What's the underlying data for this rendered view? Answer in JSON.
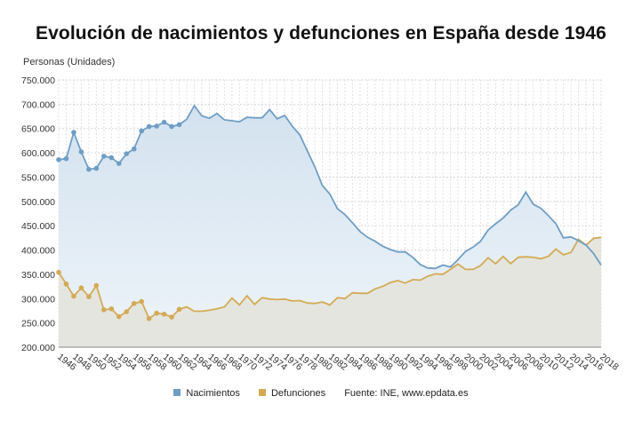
{
  "chart_data": {
    "type": "area",
    "title": "Evolución de nacimientos y defunciones en España desde 1946",
    "ylabel": "Personas (Unidades)",
    "xlabel": "",
    "ylim": [
      200000,
      750000
    ],
    "y_ticks": [
      {
        "value": 200000,
        "label": "200.000"
      },
      {
        "value": 250000,
        "label": "250.000"
      },
      {
        "value": 300000,
        "label": "300.000"
      },
      {
        "value": 350000,
        "label": "350.000"
      },
      {
        "value": 400000,
        "label": "400.000"
      },
      {
        "value": 450000,
        "label": "450.000"
      },
      {
        "value": 500000,
        "label": "500.000"
      },
      {
        "value": 550000,
        "label": "550.000"
      },
      {
        "value": 600000,
        "label": "600.000"
      },
      {
        "value": 650000,
        "label": "650.000"
      },
      {
        "value": 700000,
        "label": "700.000"
      },
      {
        "value": 750000,
        "label": "750.000"
      }
    ],
    "x_tick_labels": [
      "1946",
      "1948",
      "1950",
      "1952",
      "1954",
      "1956",
      "1958",
      "1960",
      "1962",
      "1964",
      "1966",
      "1968",
      "1970",
      "1972",
      "1974",
      "1976",
      "1978",
      "1980",
      "1982",
      "1984",
      "1986",
      "1988",
      "1990",
      "1992",
      "1994",
      "1996",
      "1998",
      "2000",
      "2002",
      "2004",
      "2006",
      "2008",
      "2010",
      "2012",
      "2014",
      "2016",
      "2018"
    ],
    "x": [
      1946,
      1947,
      1948,
      1949,
      1950,
      1951,
      1952,
      1953,
      1954,
      1955,
      1956,
      1957,
      1958,
      1959,
      1960,
      1961,
      1962,
      1963,
      1964,
      1965,
      1966,
      1967,
      1968,
      1969,
      1970,
      1971,
      1972,
      1973,
      1974,
      1975,
      1976,
      1977,
      1978,
      1979,
      1980,
      1981,
      1982,
      1983,
      1984,
      1985,
      1986,
      1987,
      1988,
      1989,
      1990,
      1991,
      1992,
      1993,
      1994,
      1995,
      1996,
      1997,
      1998,
      1999,
      2000,
      2001,
      2002,
      2003,
      2004,
      2005,
      2006,
      2007,
      2008,
      2009,
      2010,
      2011,
      2012,
      2013,
      2014,
      2015,
      2016,
      2017,
      2018
    ],
    "grid": true,
    "legend_position": "bottom",
    "series": [
      {
        "name": "Nacimientos",
        "color": "#6f9ec4",
        "values": [
          586000,
          588000,
          642000,
          602000,
          566000,
          568000,
          593000,
          590000,
          578000,
          598000,
          608000,
          645000,
          654000,
          655000,
          663000,
          654000,
          658000,
          669000,
          697000,
          676000,
          671000,
          681000,
          668000,
          666000,
          664000,
          673000,
          672000,
          672000,
          689000,
          670000,
          677000,
          655000,
          637000,
          604000,
          571000,
          533000,
          515000,
          485000,
          473000,
          456000,
          438000,
          426000,
          418000,
          408000,
          401000,
          396000,
          396000,
          385000,
          370000,
          363000,
          362000,
          369000,
          365000,
          380000,
          397000,
          406000,
          418000,
          441000,
          454000,
          466000,
          482000,
          493000,
          519000,
          494000,
          486000,
          471000,
          454000,
          425000,
          427000,
          419000,
          410000,
          393000,
          369000
        ]
      },
      {
        "name": "Defunciones",
        "color": "#d4aa55",
        "values": [
          354000,
          330000,
          305000,
          322000,
          304000,
          327000,
          277000,
          279000,
          263000,
          273000,
          290000,
          294000,
          259000,
          270000,
          268000,
          262000,
          278000,
          283000,
          274000,
          274000,
          276000,
          279000,
          283000,
          301000,
          287000,
          306000,
          288000,
          302000,
          299000,
          298000,
          299000,
          295000,
          296000,
          291000,
          290000,
          293000,
          287000,
          302000,
          300000,
          312000,
          311000,
          311000,
          320000,
          325000,
          333000,
          337000,
          332000,
          339000,
          338000,
          346000,
          351000,
          350000,
          360000,
          371000,
          360000,
          360000,
          368000,
          384000,
          372000,
          387000,
          372000,
          385000,
          386000,
          385000,
          382000,
          387000,
          402000,
          390000,
          395000,
          422000,
          410000,
          424000,
          426000
        ]
      }
    ]
  },
  "legend": {
    "nacimientos": "Nacimientos",
    "defunciones": "Defunciones",
    "source": "Fuente: INE, www.epdata.es"
  }
}
